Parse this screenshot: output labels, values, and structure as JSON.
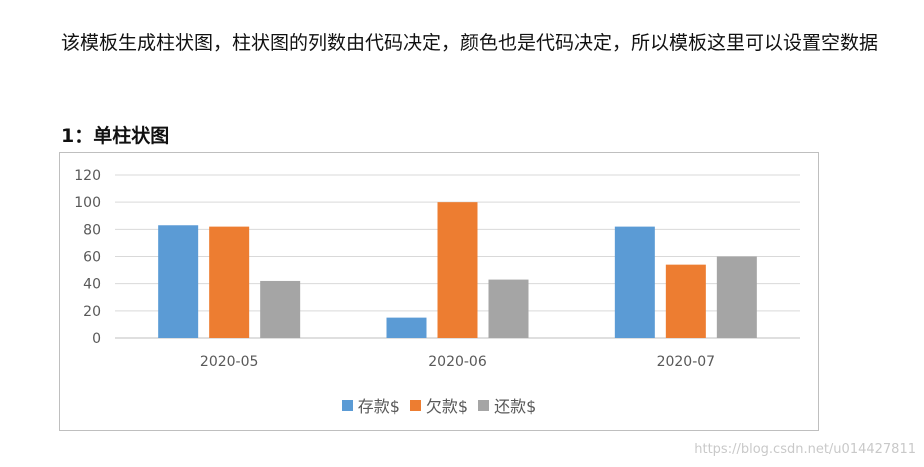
{
  "intro_text": "该模板生成柱状图，柱状图的列数由代码决定，颜色也是代码决定，所以模板这里可以设置空数据",
  "section_title": "1：单柱状图",
  "chart_data": {
    "type": "bar",
    "categories": [
      "2020-05",
      "2020-06",
      "2020-07"
    ],
    "series": [
      {
        "name": "存款$",
        "color": "#5b9bd5",
        "values": [
          83,
          15,
          82
        ]
      },
      {
        "name": "欠款$",
        "color": "#ed7d31",
        "values": [
          82,
          100,
          54
        ]
      },
      {
        "name": "还款$",
        "color": "#a5a5a5",
        "values": [
          42,
          43,
          60
        ]
      }
    ],
    "ylim": [
      0,
      120
    ],
    "yticks": [
      "0",
      "20",
      "40",
      "60",
      "80",
      "100",
      "120"
    ],
    "grid": true,
    "legend": "bottom"
  },
  "watermark": "https://blog.csdn.net/u014427811"
}
